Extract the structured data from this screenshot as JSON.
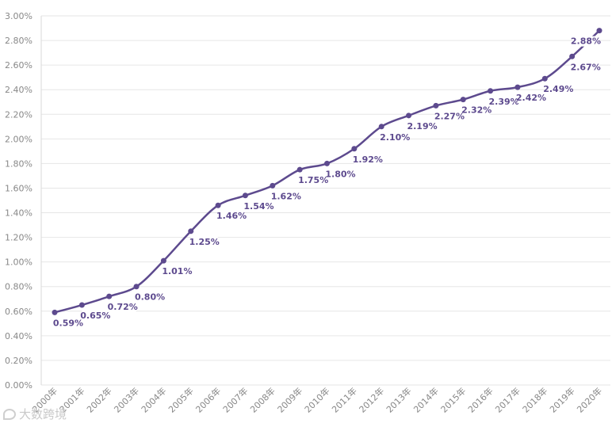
{
  "chart_data": {
    "type": "line",
    "categories": [
      "2000年",
      "2001年",
      "2002年",
      "2003年",
      "2004年",
      "2005年",
      "2006年",
      "2007年",
      "2008年",
      "2009年",
      "2010年",
      "2011年",
      "2012年",
      "2013年",
      "2014年",
      "2015年",
      "2016年",
      "2017年",
      "2018年",
      "2019年",
      "2020年"
    ],
    "values": [
      0.59,
      0.65,
      0.72,
      0.8,
      1.01,
      1.25,
      1.46,
      1.54,
      1.62,
      1.75,
      1.8,
      1.92,
      2.1,
      2.19,
      2.27,
      2.32,
      2.39,
      2.42,
      2.49,
      2.67,
      2.88
    ],
    "data_labels": [
      "0.59%",
      "0.65%",
      "0.72%",
      "0.80%",
      "1.01%",
      "1.25%",
      "1.46%",
      "1.54%",
      "1.62%",
      "1.75%",
      "1.80%",
      "1.92%",
      "2.10%",
      "2.19%",
      "2.27%",
      "2.32%",
      "2.39%",
      "2.42%",
      "2.49%",
      "2.67%",
      "2.88%"
    ],
    "y_ticks": [
      "0.00%",
      "0.20%",
      "0.40%",
      "0.60%",
      "0.80%",
      "1.00%",
      "1.20%",
      "1.40%",
      "1.60%",
      "1.80%",
      "2.00%",
      "2.20%",
      "2.40%",
      "2.60%",
      "2.80%",
      "3.00%"
    ],
    "ylim": [
      0,
      3.0
    ],
    "grid": true,
    "line_color": "#5d4a8e",
    "title": "",
    "xlabel": "",
    "ylabel": ""
  },
  "watermark": {
    "text": "大数跨境",
    "icon": "watermark-logo-icon"
  }
}
